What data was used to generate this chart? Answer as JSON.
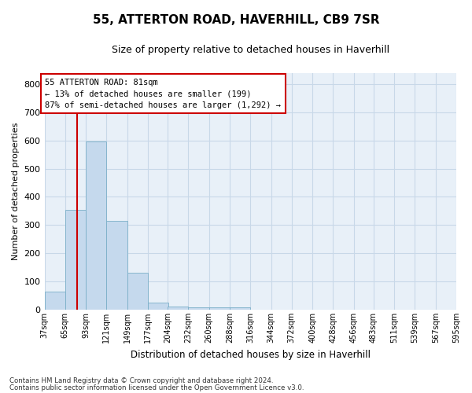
{
  "title": "55, ATTERTON ROAD, HAVERHILL, CB9 7SR",
  "subtitle": "Size of property relative to detached houses in Haverhill",
  "xlabel": "Distribution of detached houses by size in Haverhill",
  "ylabel": "Number of detached properties",
  "bar_values": [
    65,
    355,
    595,
    315,
    130,
    25,
    10,
    8,
    8,
    8,
    0,
    0,
    0,
    0,
    0,
    0,
    0,
    0,
    0,
    0
  ],
  "bin_edges": [
    37,
    65,
    93,
    121,
    149,
    177,
    204,
    232,
    260,
    288,
    316,
    344,
    372,
    400,
    428,
    456,
    483,
    511,
    539,
    567,
    595
  ],
  "tick_labels": [
    "37sqm",
    "65sqm",
    "93sqm",
    "121sqm",
    "149sqm",
    "177sqm",
    "204sqm",
    "232sqm",
    "260sqm",
    "288sqm",
    "316sqm",
    "344sqm",
    "372sqm",
    "400sqm",
    "428sqm",
    "456sqm",
    "483sqm",
    "511sqm",
    "539sqm",
    "567sqm",
    "595sqm"
  ],
  "ylim": [
    0,
    840
  ],
  "yticks": [
    0,
    100,
    200,
    300,
    400,
    500,
    600,
    700,
    800
  ],
  "bar_color": "#c5d9ed",
  "bar_edge_color": "#7aafc8",
  "grid_color": "#c8d8e8",
  "background_color": "#e8f0f8",
  "vline_x": 81,
  "vline_color": "#cc0000",
  "annotation_text": "55 ATTERTON ROAD: 81sqm\n← 13% of detached houses are smaller (199)\n87% of semi-detached houses are larger (1,292) →",
  "annotation_box_color": "#cc0000",
  "title_fontsize": 11,
  "subtitle_fontsize": 9,
  "footer_line1": "Contains HM Land Registry data © Crown copyright and database right 2024.",
  "footer_line2": "Contains public sector information licensed under the Open Government Licence v3.0."
}
